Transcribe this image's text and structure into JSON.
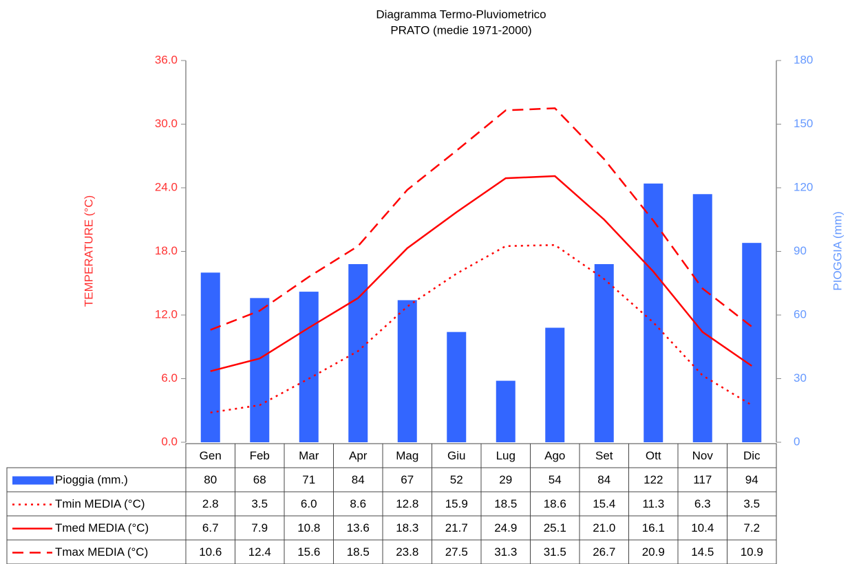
{
  "chart_data": {
    "type": "combo",
    "title": "Diagramma Termo-Pluviometrico",
    "subtitle": "PRATO (medie 1971-2000)",
    "ylabel": "TEMPERATURE (°C)",
    "y2label": "PIOGGIA (mm)",
    "categories": [
      "Gen",
      "Feb",
      "Mar",
      "Apr",
      "Mag",
      "Giu",
      "Lug",
      "Ago",
      "Set",
      "Ott",
      "Nov",
      "Dic"
    ],
    "ylim": [
      0,
      36
    ],
    "yticks": [
      {
        "value": 0,
        "label": "0.0"
      },
      {
        "value": 6,
        "label": "6.0"
      },
      {
        "value": 12,
        "label": "12.0"
      },
      {
        "value": 18,
        "label": "18.0"
      },
      {
        "value": 24,
        "label": "24.0"
      },
      {
        "value": 30,
        "label": "30.0"
      },
      {
        "value": 36,
        "label": "36.0"
      }
    ],
    "y2lim": [
      0,
      180
    ],
    "y2ticks": [
      0,
      30,
      60,
      90,
      120,
      150,
      180
    ],
    "grid": false,
    "series": [
      {
        "name": "Pioggia (mm.)",
        "type": "bar",
        "axis": "y2",
        "color": "#3366ff",
        "values": [
          80,
          68,
          71,
          84,
          67,
          52,
          29,
          54,
          84,
          122,
          117,
          94
        ]
      },
      {
        "name": "Tmin MEDIA (°C)",
        "type": "line",
        "style": "dotted",
        "color": "#ff0000",
        "values": [
          2.8,
          3.5,
          6.0,
          8.6,
          12.8,
          15.9,
          18.5,
          18.6,
          15.4,
          11.3,
          6.3,
          3.5
        ],
        "value_labels": [
          "2.8",
          "3.5",
          "6.0",
          "8.6",
          "12.8",
          "15.9",
          "18.5",
          "18.6",
          "15.4",
          "11.3",
          "6.3",
          "3.5"
        ]
      },
      {
        "name": "Tmed MEDIA (°C)",
        "type": "line",
        "style": "solid",
        "color": "#ff0000",
        "values": [
          6.7,
          7.9,
          10.8,
          13.6,
          18.3,
          21.7,
          24.9,
          25.1,
          21.0,
          16.1,
          10.4,
          7.2
        ],
        "value_labels": [
          "6.7",
          "7.9",
          "10.8",
          "13.6",
          "18.3",
          "21.7",
          "24.9",
          "25.1",
          "21.0",
          "16.1",
          "10.4",
          "7.2"
        ]
      },
      {
        "name": "Tmax MEDIA (°C)",
        "type": "line",
        "style": "dashed",
        "color": "#ff0000",
        "values": [
          10.6,
          12.4,
          15.6,
          18.5,
          23.8,
          27.5,
          31.3,
          31.5,
          26.7,
          20.9,
          14.5,
          10.9
        ]
      }
    ]
  }
}
